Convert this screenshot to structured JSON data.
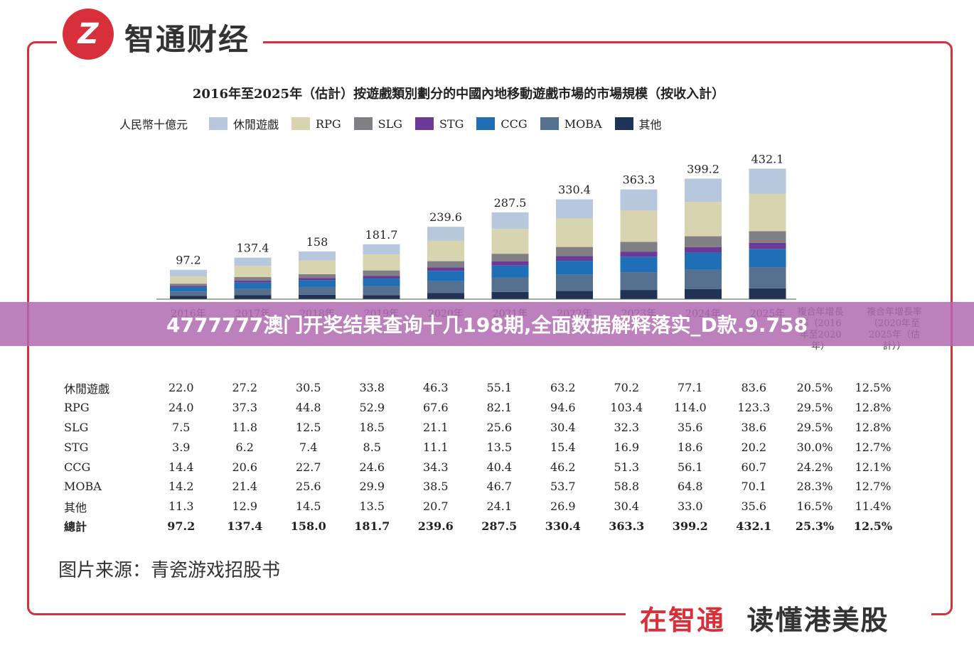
{
  "brand": {
    "name": "智通财经",
    "logo_text": "Z"
  },
  "footer": {
    "slogan_a": "在智通",
    "slogan_b": "读懂港美股"
  },
  "overlay_text": "4777777澳门开奖结果查询十几198期,全面数据解释落实_D款.9.758",
  "source_note": "图片来源：青瓷游戏招股书",
  "colors": {
    "frame": "#d8303a",
    "overlay": "#b06ab2"
  },
  "chart_data": {
    "type": "bar",
    "stacked": true,
    "title": "2016年至2025年（估計）按遊戲類別劃分的中國內地移動遊戲市場的市場規模（按收入計）",
    "unit_label": "人民幣十億元",
    "categories": [
      "2016年",
      "2017年",
      "2018年",
      "2019年",
      "2020年",
      "2021年",
      "2022年",
      "2023年",
      "2024年",
      "2025年"
    ],
    "series": [
      {
        "name": "其他",
        "color": "#1f3356",
        "values": [
          11.3,
          12.9,
          14.5,
          13.5,
          20.7,
          24.1,
          26.9,
          30.4,
          33.0,
          35.6
        ]
      },
      {
        "name": "MOBA",
        "color": "#56708f",
        "values": [
          14.2,
          21.4,
          25.6,
          29.9,
          38.5,
          46.7,
          53.7,
          58.8,
          64.8,
          70.1
        ]
      },
      {
        "name": "CCG",
        "color": "#1f6fb6",
        "values": [
          14.4,
          20.6,
          22.7,
          24.6,
          34.3,
          40.4,
          46.2,
          51.3,
          56.1,
          60.7
        ]
      },
      {
        "name": "STG",
        "color": "#6b3a97",
        "values": [
          3.9,
          6.2,
          7.4,
          8.5,
          11.1,
          13.5,
          15.4,
          16.9,
          18.6,
          20.2
        ]
      },
      {
        "name": "SLG",
        "color": "#7f7f84",
        "values": [
          7.5,
          11.8,
          12.5,
          18.5,
          21.1,
          25.6,
          30.4,
          32.3,
          35.6,
          38.6
        ]
      },
      {
        "name": "RPG",
        "color": "#d9d4b0",
        "values": [
          24.0,
          37.3,
          44.8,
          52.9,
          67.6,
          82.1,
          94.6,
          103.4,
          114.0,
          123.3
        ]
      },
      {
        "name": "休閒遊戲",
        "color": "#b7c8dd",
        "values": [
          22.0,
          27.2,
          30.5,
          33.8,
          46.3,
          55.1,
          63.2,
          70.2,
          77.1,
          83.6
        ]
      }
    ],
    "legend_order": [
      "休閒遊戲",
      "RPG",
      "SLG",
      "STG",
      "CCG",
      "MOBA",
      "其他"
    ],
    "totals": [
      97.2,
      137.4,
      158.0,
      181.7,
      239.6,
      287.5,
      330.4,
      363.3,
      399.2,
      432.1
    ],
    "ylim": [
      0,
      440
    ],
    "legend_position": "top-left",
    "cagr_headers": [
      "複合年增長率（2016年至2020年）",
      "複合年增長率（2020年至2025年（估計））"
    ],
    "table": {
      "rows": [
        {
          "label": "休閒遊戲",
          "values": [
            "22.0",
            "27.2",
            "30.5",
            "33.8",
            "46.3",
            "55.1",
            "63.2",
            "70.2",
            "77.1",
            "83.6"
          ],
          "cagr": [
            "20.5%",
            "12.5%"
          ]
        },
        {
          "label": "RPG",
          "values": [
            "24.0",
            "37.3",
            "44.8",
            "52.9",
            "67.6",
            "82.1",
            "94.6",
            "103.4",
            "114.0",
            "123.3"
          ],
          "cagr": [
            "29.5%",
            "12.8%"
          ]
        },
        {
          "label": "SLG",
          "values": [
            "7.5",
            "11.8",
            "12.5",
            "18.5",
            "21.1",
            "25.6",
            "30.4",
            "32.3",
            "35.6",
            "38.6"
          ],
          "cagr": [
            "29.5%",
            "12.8%"
          ]
        },
        {
          "label": "STG",
          "values": [
            "3.9",
            "6.2",
            "7.4",
            "8.5",
            "11.1",
            "13.5",
            "15.4",
            "16.9",
            "18.6",
            "20.2"
          ],
          "cagr": [
            "30.0%",
            "12.7%"
          ]
        },
        {
          "label": "CCG",
          "values": [
            "14.4",
            "20.6",
            "22.7",
            "24.6",
            "34.3",
            "40.4",
            "46.2",
            "51.3",
            "56.1",
            "60.7"
          ],
          "cagr": [
            "24.2%",
            "12.1%"
          ]
        },
        {
          "label": "MOBA",
          "values": [
            "14.2",
            "21.4",
            "25.6",
            "29.9",
            "38.5",
            "46.7",
            "53.7",
            "58.8",
            "64.8",
            "70.1"
          ],
          "cagr": [
            "28.3%",
            "12.7%"
          ]
        },
        {
          "label": "其他",
          "values": [
            "11.3",
            "12.9",
            "14.5",
            "13.5",
            "20.7",
            "24.1",
            "26.9",
            "30.4",
            "33.0",
            "35.6"
          ],
          "cagr": [
            "16.5%",
            "11.4%"
          ]
        }
      ],
      "total_row": {
        "label": "總計",
        "values": [
          "97.2",
          "137.4",
          "158.0",
          "181.7",
          "239.6",
          "287.5",
          "330.4",
          "363.3",
          "399.2",
          "432.1"
        ],
        "cagr": [
          "25.3%",
          "12.5%"
        ]
      }
    }
  }
}
